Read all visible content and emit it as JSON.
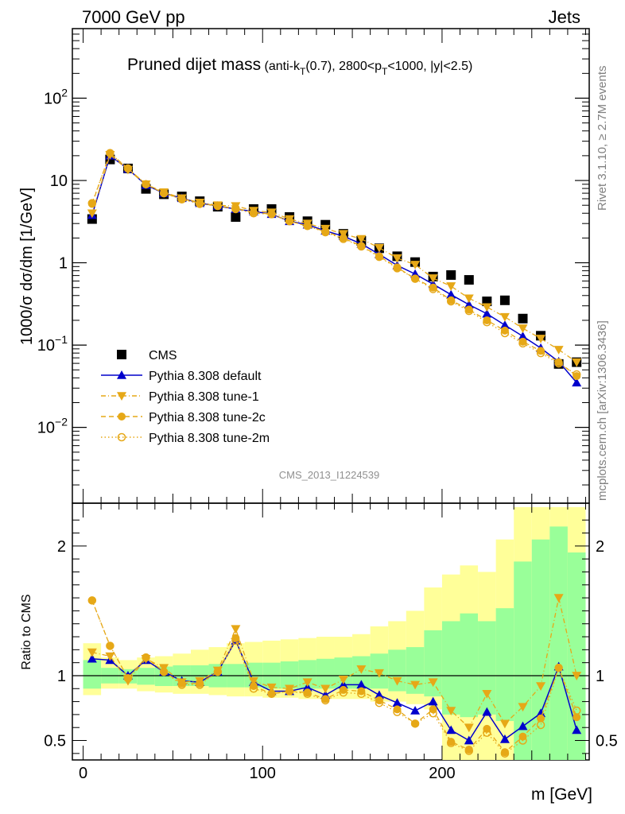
{
  "header": {
    "left": "7000 GeV pp",
    "right": "Jets"
  },
  "title_main": "Pruned dijet mass",
  "title_sub": "(anti-k_T(0.7), 2800<p_T<1000, |y|<2.5)",
  "side_text_top": "Rivet 3.1.10, ≥ 2.7M events",
  "side_text_bottom": "mcplots.cern.ch [arXiv:1306.3436]",
  "analysis_id": "CMS_2013_I1224539",
  "colors": {
    "cms": "#000000",
    "default": "#0000cc",
    "tune": "#e6a817",
    "yellow": "#ffff99",
    "green": "#99ff99"
  },
  "chart_data": [
    {
      "type": "scatter",
      "title": "Pruned dijet mass(anti-k_T(0.7), 2800<p_T<1000, |y|<2.5)",
      "xlabel": "m [GeV]",
      "ylabel": "1000/σ dσ/dm [1/GeV]",
      "yscale": "log",
      "xlim": [
        -6,
        282
      ],
      "ylim": [
        0.0012,
        700
      ],
      "yticks": [
        {
          "v": 0.01,
          "label": "10^-2"
        },
        {
          "v": 0.1,
          "label": "10^-1"
        },
        {
          "v": 1,
          "label": "1"
        },
        {
          "v": 10,
          "label": "10"
        },
        {
          "v": 100,
          "label": "10^2"
        }
      ],
      "legend_position": "bottom-left",
      "x": [
        5,
        15,
        25,
        35,
        45,
        55,
        65,
        75,
        85,
        95,
        105,
        115,
        125,
        135,
        145,
        155,
        165,
        175,
        185,
        195,
        205,
        215,
        225,
        235,
        245,
        255,
        265,
        275
      ],
      "series": [
        {
          "name": "CMS",
          "marker": "square",
          "values": [
            3.4,
            18.0,
            14.0,
            7.9,
            6.8,
            6.4,
            5.6,
            4.8,
            3.6,
            4.5,
            4.5,
            3.6,
            3.2,
            2.9,
            2.25,
            1.85,
            1.5,
            1.2,
            1.02,
            0.68,
            0.71,
            0.62,
            0.34,
            0.35,
            0.21,
            0.13,
            0.059,
            0.062
          ]
        },
        {
          "name": "Pythia 8.308 default",
          "marker": "triangle-up",
          "style": "solid",
          "values": [
            3.8,
            20.0,
            13.8,
            8.8,
            7.0,
            6.1,
            5.3,
            4.9,
            4.5,
            4.2,
            3.9,
            3.2,
            2.9,
            2.45,
            2.1,
            1.7,
            1.27,
            0.93,
            0.73,
            0.55,
            0.41,
            0.31,
            0.24,
            0.175,
            0.128,
            0.092,
            0.063,
            0.035
          ]
        },
        {
          "name": "Pythia 8.308 tune-1",
          "marker": "triangle-down",
          "style": "dashdot",
          "values": [
            4.0,
            20.5,
            13.5,
            9.0,
            7.2,
            6.1,
            5.4,
            5.0,
            4.9,
            4.3,
            4.1,
            3.4,
            3.0,
            2.6,
            2.25,
            1.95,
            1.52,
            1.14,
            0.95,
            0.65,
            0.52,
            0.37,
            0.29,
            0.22,
            0.16,
            0.12,
            0.088,
            0.062
          ]
        },
        {
          "name": "Pythia 8.308 tune-2c",
          "marker": "circle",
          "style": "dashed",
          "values": [
            5.2,
            21.5,
            14.0,
            9.0,
            7.0,
            6.0,
            5.3,
            4.9,
            4.6,
            4.1,
            3.9,
            3.2,
            2.8,
            2.4,
            2.0,
            1.6,
            1.2,
            0.88,
            0.64,
            0.5,
            0.35,
            0.27,
            0.2,
            0.15,
            0.11,
            0.085,
            0.062,
            0.042
          ]
        },
        {
          "name": "Pythia 8.308 tune-2m",
          "marker": "circle-open",
          "style": "dotted",
          "values": [
            5.3,
            21.5,
            14.0,
            9.0,
            7.0,
            5.9,
            5.2,
            4.9,
            4.5,
            4.0,
            3.9,
            3.2,
            2.8,
            2.35,
            1.95,
            1.58,
            1.18,
            0.86,
            0.64,
            0.48,
            0.34,
            0.26,
            0.19,
            0.14,
            0.105,
            0.08,
            0.06,
            0.044
          ]
        }
      ]
    },
    {
      "type": "line",
      "xlabel": "m [GeV]",
      "ylabel": "Ratio to CMS",
      "xlim": [
        -6,
        282
      ],
      "ylim": [
        0.35,
        2.33
      ],
      "yticks": [
        0.5,
        1,
        2
      ],
      "xticks": [
        0,
        100,
        200
      ],
      "bands": {
        "edges": [
          0,
          10,
          20,
          30,
          40,
          50,
          60,
          70,
          80,
          90,
          100,
          110,
          120,
          130,
          140,
          150,
          160,
          170,
          180,
          190,
          200,
          210,
          220,
          230,
          240,
          250,
          260,
          270,
          280
        ],
        "yellow_low": [
          0.85,
          0.9,
          0.9,
          0.88,
          0.87,
          0.86,
          0.86,
          0.85,
          0.84,
          0.84,
          0.83,
          0.83,
          0.82,
          0.82,
          0.82,
          0.82,
          0.8,
          0.8,
          0.78,
          0.74,
          0.3,
          0.3,
          0.3,
          0.3,
          0.3,
          0.3,
          0.3,
          0.3
        ],
        "yellow_high": [
          1.25,
          1.14,
          1.12,
          1.14,
          1.15,
          1.17,
          1.2,
          1.22,
          1.25,
          1.26,
          1.27,
          1.28,
          1.29,
          1.3,
          1.3,
          1.32,
          1.38,
          1.42,
          1.5,
          1.68,
          1.78,
          1.85,
          1.8,
          2.05,
          2.3,
          2.3,
          2.3,
          2.3
        ],
        "green_low": [
          0.9,
          0.94,
          0.94,
          0.93,
          0.92,
          0.92,
          0.92,
          0.91,
          0.91,
          0.91,
          0.9,
          0.9,
          0.9,
          0.9,
          0.9,
          0.9,
          0.9,
          0.88,
          0.86,
          0.84,
          0.7,
          0.68,
          0.7,
          0.65,
          0.35,
          0.35,
          0.35,
          0.35
        ],
        "green_high": [
          1.12,
          1.06,
          1.05,
          1.06,
          1.07,
          1.08,
          1.08,
          1.09,
          1.09,
          1.1,
          1.1,
          1.11,
          1.12,
          1.13,
          1.14,
          1.15,
          1.17,
          1.2,
          1.22,
          1.35,
          1.42,
          1.48,
          1.42,
          1.52,
          1.88,
          2.05,
          2.15,
          1.95
        ]
      },
      "series": [
        {
          "name": "Pythia 8.308 default",
          "values": [
            1.13,
            1.12,
            1.0,
            1.12,
            1.03,
            0.96,
            0.95,
            1.03,
            1.27,
            0.95,
            0.88,
            0.88,
            0.91,
            0.85,
            0.93,
            0.93,
            0.85,
            0.79,
            0.73,
            0.8,
            0.58,
            0.5,
            0.72,
            0.51,
            0.61,
            0.71,
            1.07,
            0.58
          ]
        },
        {
          "name": "Pythia 8.308 tune-1",
          "values": [
            1.18,
            1.15,
            0.96,
            1.13,
            1.06,
            0.95,
            0.96,
            1.04,
            1.36,
            0.96,
            0.91,
            0.9,
            0.95,
            0.9,
            0.97,
            1.05,
            1.02,
            0.96,
            0.93,
            0.95,
            0.73,
            0.6,
            0.86,
            0.63,
            0.76,
            0.92,
            1.6,
            1.0
          ]
        },
        {
          "name": "Pythia 8.308 tune-2c",
          "values": [
            1.58,
            1.23,
            0.98,
            1.14,
            1.03,
            0.94,
            0.94,
            1.03,
            1.29,
            0.92,
            0.86,
            0.88,
            0.87,
            0.82,
            0.89,
            0.88,
            0.81,
            0.74,
            0.63,
            0.74,
            0.49,
            0.43,
            0.59,
            0.41,
            0.53,
            0.67,
            1.06,
            0.68
          ]
        },
        {
          "name": "Pythia 8.308 tune-2m",
          "values": [
            1.58,
            1.23,
            0.98,
            1.14,
            1.03,
            0.93,
            0.93,
            1.03,
            1.27,
            0.9,
            0.86,
            0.88,
            0.86,
            0.81,
            0.87,
            0.86,
            0.79,
            0.72,
            0.63,
            0.71,
            0.48,
            0.42,
            0.56,
            0.4,
            0.5,
            0.62,
            1.06,
            0.73
          ]
        }
      ]
    }
  ]
}
